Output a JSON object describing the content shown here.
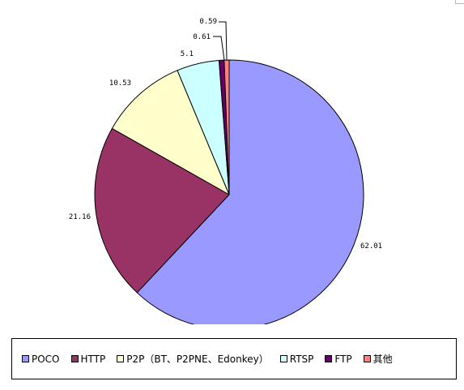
{
  "chart_data": {
    "type": "pie",
    "categories": [
      "POCO",
      "HTTP",
      "P2P（BT、P2PNE、Edonkey）",
      "RTSP",
      "FTP",
      "其他"
    ],
    "values": [
      62.01,
      21.16,
      10.53,
      5.1,
      0.61,
      0.59
    ],
    "data_labels": [
      "62.01",
      "21.16",
      "10.53",
      "5.1",
      "0.61",
      "0.59"
    ],
    "colors": [
      "#9999ff",
      "#993366",
      "#ffffcc",
      "#ccffff",
      "#660066",
      "#ff8080"
    ],
    "legend_position": "bottom",
    "title": ""
  }
}
